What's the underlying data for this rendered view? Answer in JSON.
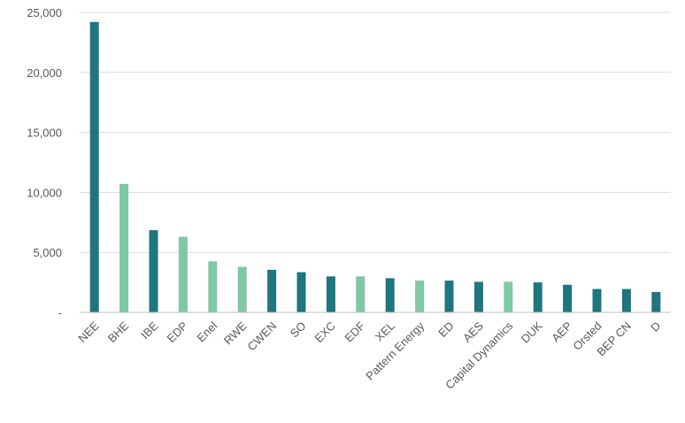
{
  "chart_data": {
    "type": "bar",
    "title": "",
    "xlabel": "",
    "ylabel": "",
    "ylim": [
      0,
      25000
    ],
    "y_ticks": [
      {
        "value": 0,
        "label": "-"
      },
      {
        "value": 5000,
        "label": "5,000"
      },
      {
        "value": 10000,
        "label": "10,000"
      },
      {
        "value": 15000,
        "label": "15,000"
      },
      {
        "value": 20000,
        "label": "20,000"
      },
      {
        "value": 25000,
        "label": "25,000"
      }
    ],
    "grid": true,
    "legend": "none",
    "categories": [
      "NEE",
      "BHE",
      "IBE",
      "EDP",
      "Enel",
      "RWE",
      "CWEN",
      "SO",
      "EXC",
      "EDF",
      "XEL",
      "Pattern Energy",
      "ED",
      "AES",
      "Capital Dynamics",
      "DUK",
      "AEP",
      "Orsted",
      "BEP CN",
      "D"
    ],
    "values": [
      24200,
      10700,
      6850,
      6300,
      4250,
      3800,
      3550,
      3350,
      3000,
      3000,
      2850,
      2650,
      2650,
      2550,
      2550,
      2500,
      2300,
      1950,
      1950,
      1700
    ],
    "bar_colors": [
      "dark",
      "light",
      "dark",
      "light",
      "light",
      "light",
      "dark",
      "dark",
      "dark",
      "light",
      "dark",
      "light",
      "dark",
      "dark",
      "light",
      "dark",
      "dark",
      "dark",
      "dark",
      "dark"
    ],
    "colors": {
      "dark": "#1f7580",
      "light": "#7ec8a4",
      "grid": "#d9d9d9",
      "axis": "#bfbfbf",
      "text": "#595959"
    }
  }
}
